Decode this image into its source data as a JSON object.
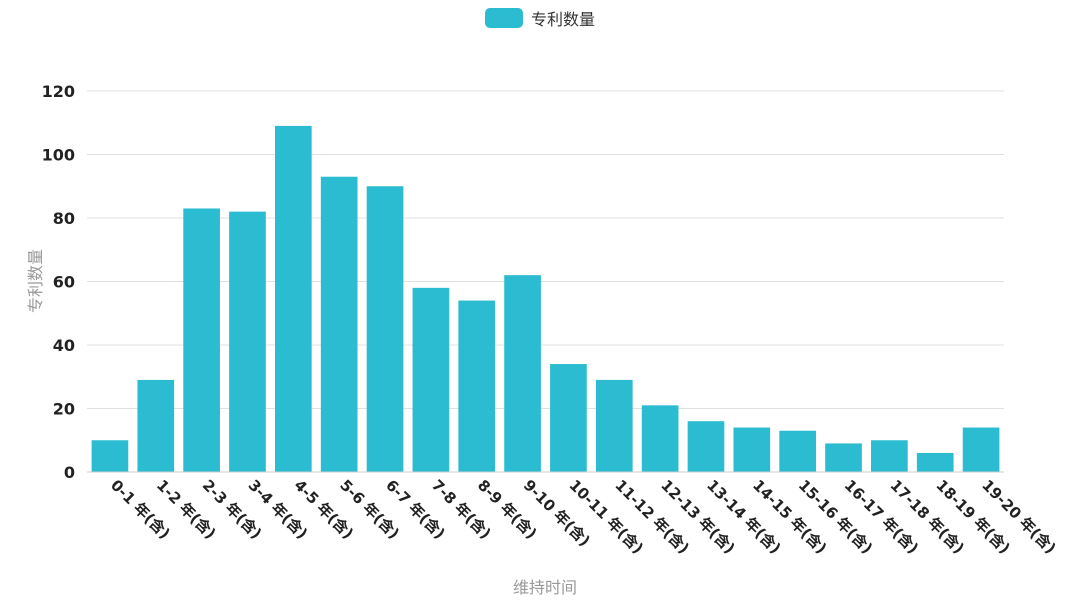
{
  "chart_data": {
    "type": "bar",
    "categories": [
      "0-1 年(含)",
      "1-2 年(含)",
      "2-3 年(含)",
      "3-4 年(含)",
      "4-5 年(含)",
      "5-6 年(含)",
      "6-7 年(含)",
      "7-8 年(含)",
      "8-9 年(含)",
      "9-10 年(含)",
      "10-11 年(含)",
      "11-12 年(含)",
      "12-13 年(含)",
      "13-14 年(含)",
      "14-15 年(含)",
      "15-16 年(含)",
      "16-17 年(含)",
      "17-18 年(含)",
      "18-19 年(含)",
      "19-20 年(含)"
    ],
    "series": [
      {
        "name": "专利数量",
        "color": "#2bbcd1",
        "values": [
          10,
          29,
          83,
          82,
          109,
          93,
          90,
          58,
          54,
          62,
          34,
          29,
          21,
          16,
          14,
          13,
          9,
          10,
          6,
          14
        ]
      }
    ],
    "xlabel": "维持时间",
    "ylabel": "专利数量",
    "ylim": [
      0,
      120
    ],
    "yticks": [
      0,
      20,
      40,
      60,
      80,
      100,
      120
    ],
    "grid": true,
    "legend_position": "top-center"
  }
}
